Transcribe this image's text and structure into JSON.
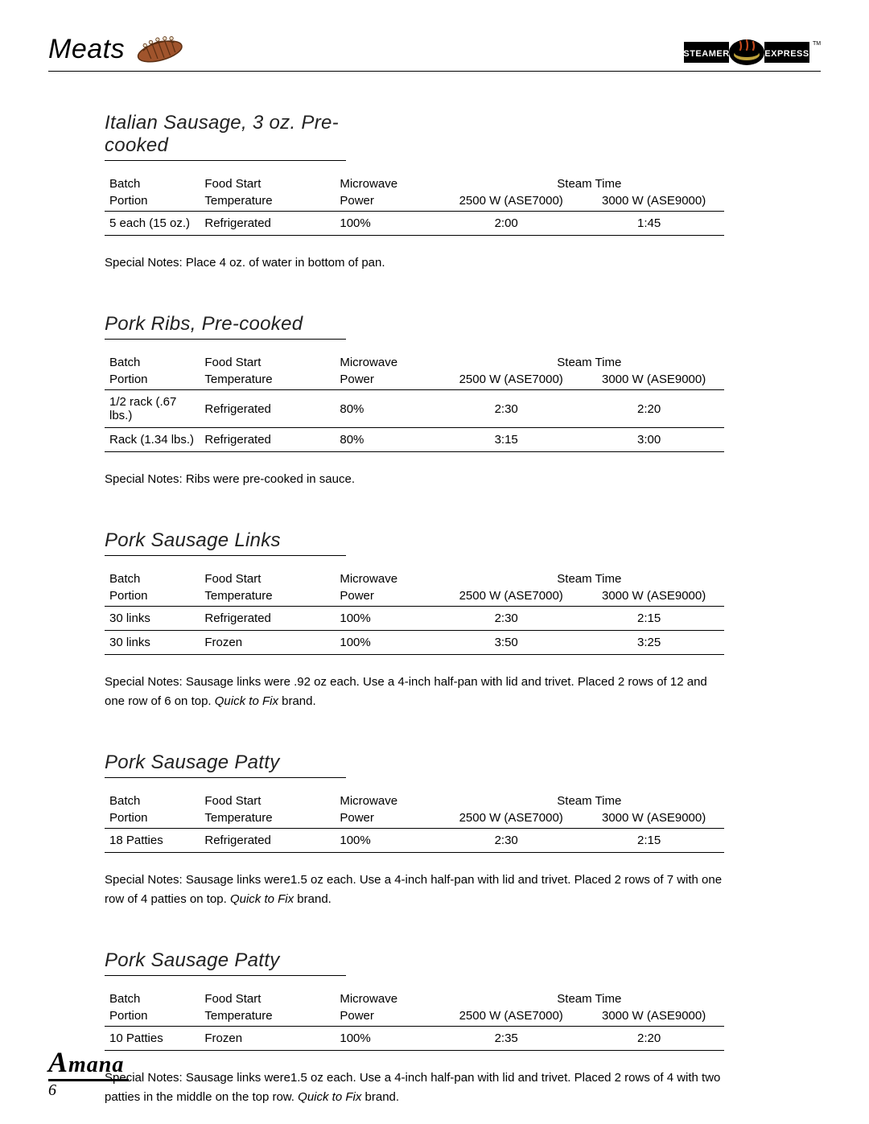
{
  "header": {
    "category": "Meats",
    "brand_right_left": "STEAMER",
    "brand_right_right": "EXPRESS",
    "tm": "TM"
  },
  "columns": {
    "batch1": "Batch",
    "batch2": "Portion",
    "temp1": "Food Start",
    "temp2": "Temperature",
    "power1": "Microwave",
    "power2": "Power",
    "steam": "Steam Time",
    "st1": "2500 W (ASE7000)",
    "st2": "3000 W (ASE9000)"
  },
  "notes_label": "Special Notes: ",
  "sections": [
    {
      "title": "Italian Sausage, 3 oz. Pre-cooked",
      "rows": [
        {
          "batch": "5 each (15 oz.)",
          "temp": "Refrigerated",
          "power": "100%",
          "t1": "2:00",
          "t2": "1:45"
        }
      ],
      "notes": "Place 4 oz. of water in bottom of pan.",
      "brand": ""
    },
    {
      "title": "Pork Ribs, Pre-cooked",
      "rows": [
        {
          "batch": "1/2 rack (.67 lbs.)",
          "temp": "Refrigerated",
          "power": "80%",
          "t1": "2:30",
          "t2": "2:20"
        },
        {
          "batch": "Rack (1.34 lbs.)",
          "temp": "Refrigerated",
          "power": "80%",
          "t1": "3:15",
          "t2": "3:00"
        }
      ],
      "notes": "Ribs were pre-cooked in sauce.",
      "brand": ""
    },
    {
      "title": "Pork Sausage Links",
      "rows": [
        {
          "batch": "30 links",
          "temp": "Refrigerated",
          "power": "100%",
          "t1": "2:30",
          "t2": "2:15"
        },
        {
          "batch": "30 links",
          "temp": "Frozen",
          "power": "100%",
          "t1": "3:50",
          "t2": "3:25"
        }
      ],
      "notes": "Sausage links were .92 oz each.  Use a 4-inch half-pan with lid and trivet. Placed 2 rows of 12 and one row of 6 on top. ",
      "brand": "Quick to Fix"
    },
    {
      "title": "Pork Sausage Patty",
      "rows": [
        {
          "batch": "18 Patties",
          "temp": "Refrigerated",
          "power": "100%",
          "t1": "2:30",
          "t2": "2:15"
        }
      ],
      "notes": "Sausage links were1.5 oz each.  Use a 4-inch half-pan with lid and trivet. Placed 2 rows of 7 with one row of 4 patties on top. ",
      "brand": "Quick to Fix"
    },
    {
      "title": "Pork Sausage Patty",
      "rows": [
        {
          "batch": "10 Patties",
          "temp": "Frozen",
          "power": "100%",
          "t1": "2:35",
          "t2": "2:20"
        }
      ],
      "notes": "Sausage links were1.5 oz each.  Use a 4-inch half-pan with lid and trivet. Placed 2 rows of 4 with two patties in the middle on the top row. ",
      "brand": "Quick to Fix"
    }
  ],
  "footer": {
    "brand": "Amana",
    "page": "6"
  },
  "colors": {
    "text": "#000000",
    "rib_fill": "#a0542c",
    "rib_outline": "#5a2e12",
    "bone": "#e9dcc5",
    "logo_bg": "#000000",
    "logo_text": "#ffffff",
    "logo_dish": "#bfa23a",
    "logo_steam": "#c1481c"
  }
}
